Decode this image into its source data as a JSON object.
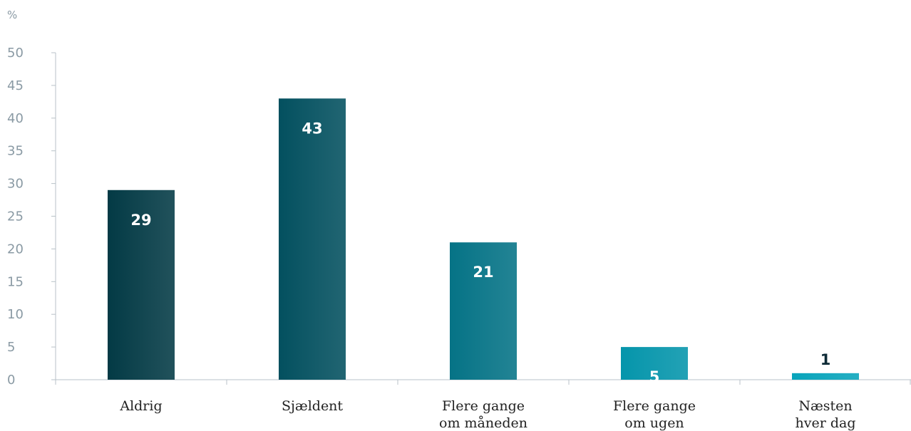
{
  "chart_data": {
    "type": "bar",
    "y_unit": "%",
    "ylim": [
      0,
      50
    ],
    "y_ticks": [
      "0",
      "5",
      "10",
      "15",
      "20",
      "25",
      "30",
      "35",
      "40",
      "45",
      "50"
    ],
    "grid": false,
    "categories": [
      [
        "Aldrig"
      ],
      [
        "Sjældent"
      ],
      [
        "Flere gange",
        "om måneden"
      ],
      [
        "Flere gange",
        "om ugen"
      ],
      [
        "Næsten",
        "hver dag"
      ]
    ],
    "values": [
      29,
      43,
      21,
      5,
      1
    ],
    "value_labels": [
      "29",
      "43",
      "21",
      "5",
      "1"
    ],
    "colors": [
      "#033a45",
      "#03505f",
      "#057386",
      "#0595ab",
      "#08a4bb"
    ],
    "value_label_colors": [
      "#ffffff",
      "#ffffff",
      "#ffffff",
      "#ffffff",
      "#0d2a36"
    ]
  }
}
